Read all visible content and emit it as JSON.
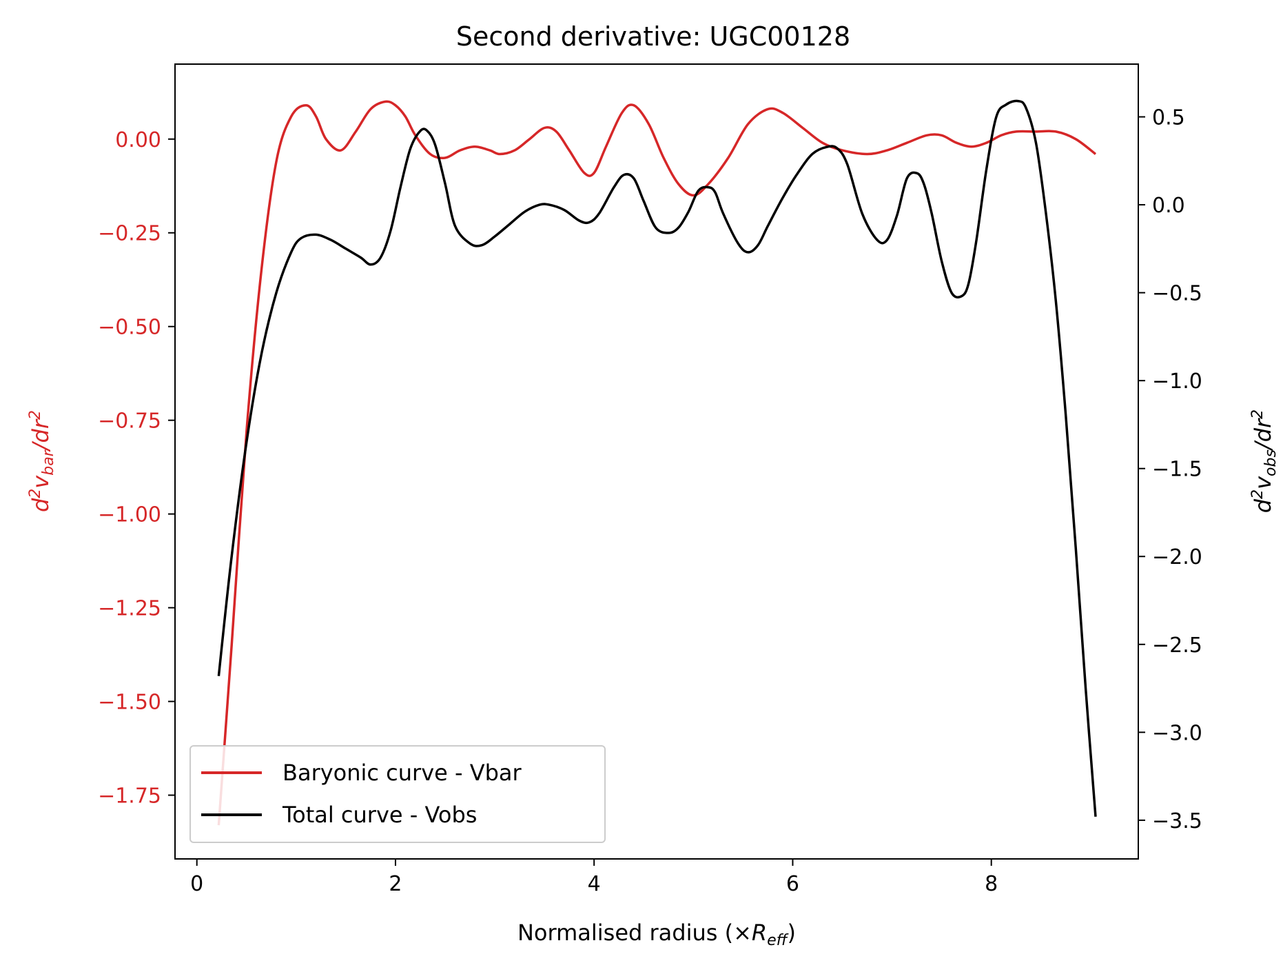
{
  "chart_data": {
    "type": "line",
    "title": "Second derivative: UGC00128",
    "xlabel": "Normalised radius (×R_eff)",
    "xlabel_parts": {
      "prefix": "Normalised radius (×",
      "var": "R",
      "sub": "eff",
      "suffix": ")"
    },
    "ylabel_left": "d²v_bar/dr²",
    "ylabel_right": "d²v_obs/dr²",
    "ylabel_left_parts": {
      "p1": "d",
      "sup1": "2",
      "p2": "v",
      "sub": "bar",
      "p3": "/dr",
      "sup2": "2"
    },
    "ylabel_right_parts": {
      "p1": "d",
      "sup1": "2",
      "p2": "v",
      "sub": "obs",
      "p3": "/dr",
      "sup2": "2"
    },
    "xlim": [
      -0.22,
      9.48
    ],
    "ylim_left": [
      -1.92,
      0.2
    ],
    "ylim_right": [
      -3.72,
      0.8
    ],
    "x_ticks": [
      0,
      2,
      4,
      6,
      8
    ],
    "x_tick_labels": [
      "0",
      "2",
      "4",
      "6",
      "8"
    ],
    "y_left_ticks": [
      0.0,
      -0.25,
      -0.5,
      -0.75,
      -1.0,
      -1.25,
      -1.5,
      -1.75
    ],
    "y_left_tick_labels": [
      "0.00",
      "−0.25",
      "−0.50",
      "−0.75",
      "−1.00",
      "−1.25",
      "−1.50",
      "−1.75"
    ],
    "y_right_ticks": [
      0.5,
      0.0,
      -0.5,
      -1.0,
      -1.5,
      -2.0,
      -2.5,
      -3.0,
      -3.5
    ],
    "y_right_tick_labels": [
      "0.5",
      "0.0",
      "−0.5",
      "−1.0",
      "−1.5",
      "−2.0",
      "−2.5",
      "−3.0",
      "−3.5"
    ],
    "grid": false,
    "legend_position": "lower-left",
    "colors": {
      "vbar": "#d62728",
      "vobs": "#000000",
      "axes": "#000000"
    },
    "series": [
      {
        "name": "Baryonic curve - Vbar",
        "axis": "left",
        "x": [
          0.22,
          0.35,
          0.5,
          0.65,
          0.8,
          0.95,
          1.1,
          1.2,
          1.3,
          1.45,
          1.6,
          1.75,
          1.9,
          2.0,
          2.1,
          2.2,
          2.35,
          2.5,
          2.65,
          2.8,
          2.95,
          3.05,
          3.2,
          3.35,
          3.5,
          3.62,
          3.75,
          3.9,
          4.0,
          4.12,
          4.28,
          4.4,
          4.55,
          4.7,
          4.85,
          5.0,
          5.15,
          5.35,
          5.55,
          5.75,
          5.9,
          6.1,
          6.3,
          6.5,
          6.75,
          6.95,
          7.15,
          7.35,
          7.5,
          7.65,
          7.8,
          7.95,
          8.1,
          8.25,
          8.45,
          8.65,
          8.85,
          9.05
        ],
        "values": [
          -1.83,
          -1.35,
          -0.78,
          -0.35,
          -0.06,
          0.06,
          0.09,
          0.06,
          0.0,
          -0.03,
          0.02,
          0.08,
          0.1,
          0.09,
          0.06,
          0.01,
          -0.04,
          -0.05,
          -0.03,
          -0.02,
          -0.03,
          -0.04,
          -0.03,
          0.0,
          0.03,
          0.02,
          -0.03,
          -0.09,
          -0.09,
          -0.02,
          0.07,
          0.09,
          0.04,
          -0.05,
          -0.12,
          -0.15,
          -0.12,
          -0.05,
          0.04,
          0.08,
          0.07,
          0.03,
          -0.01,
          -0.03,
          -0.04,
          -0.03,
          -0.01,
          0.01,
          0.01,
          -0.01,
          -0.02,
          -0.01,
          0.01,
          0.02,
          0.02,
          0.02,
          0.0,
          -0.04
        ]
      },
      {
        "name": "Total curve - Vobs",
        "axis": "right",
        "x": [
          0.22,
          0.35,
          0.5,
          0.65,
          0.8,
          0.95,
          1.05,
          1.2,
          1.35,
          1.5,
          1.65,
          1.75,
          1.85,
          1.95,
          2.05,
          2.15,
          2.25,
          2.32,
          2.4,
          2.5,
          2.6,
          2.75,
          2.87,
          3.0,
          3.15,
          3.3,
          3.45,
          3.55,
          3.7,
          3.85,
          3.95,
          4.05,
          4.2,
          4.3,
          4.4,
          4.5,
          4.62,
          4.75,
          4.85,
          4.95,
          5.05,
          5.15,
          5.22,
          5.3,
          5.45,
          5.55,
          5.65,
          5.75,
          5.9,
          6.05,
          6.2,
          6.35,
          6.45,
          6.55,
          6.7,
          6.85,
          6.95,
          7.05,
          7.15,
          7.25,
          7.32,
          7.4,
          7.5,
          7.6,
          7.7,
          7.77,
          7.85,
          7.95,
          8.05,
          8.15,
          8.27,
          8.35,
          8.45,
          8.55,
          8.65,
          8.75,
          8.85,
          8.95,
          9.05
        ],
        "values": [
          -2.68,
          -2.0,
          -1.35,
          -0.85,
          -0.5,
          -0.27,
          -0.19,
          -0.17,
          -0.2,
          -0.25,
          -0.3,
          -0.34,
          -0.3,
          -0.15,
          0.1,
          0.32,
          0.42,
          0.42,
          0.34,
          0.12,
          -0.12,
          -0.22,
          -0.23,
          -0.18,
          -0.11,
          -0.04,
          0.0,
          0.0,
          -0.03,
          -0.09,
          -0.1,
          -0.05,
          0.1,
          0.17,
          0.15,
          0.02,
          -0.13,
          -0.16,
          -0.13,
          -0.04,
          0.08,
          0.1,
          0.07,
          -0.05,
          -0.22,
          -0.27,
          -0.23,
          -0.12,
          0.04,
          0.18,
          0.29,
          0.33,
          0.32,
          0.23,
          -0.05,
          -0.2,
          -0.2,
          -0.06,
          0.15,
          0.18,
          0.12,
          -0.05,
          -0.32,
          -0.5,
          -0.52,
          -0.45,
          -0.2,
          0.2,
          0.5,
          0.57,
          0.59,
          0.55,
          0.35,
          -0.05,
          -0.55,
          -1.2,
          -1.95,
          -2.75,
          -3.48
        ]
      }
    ]
  }
}
